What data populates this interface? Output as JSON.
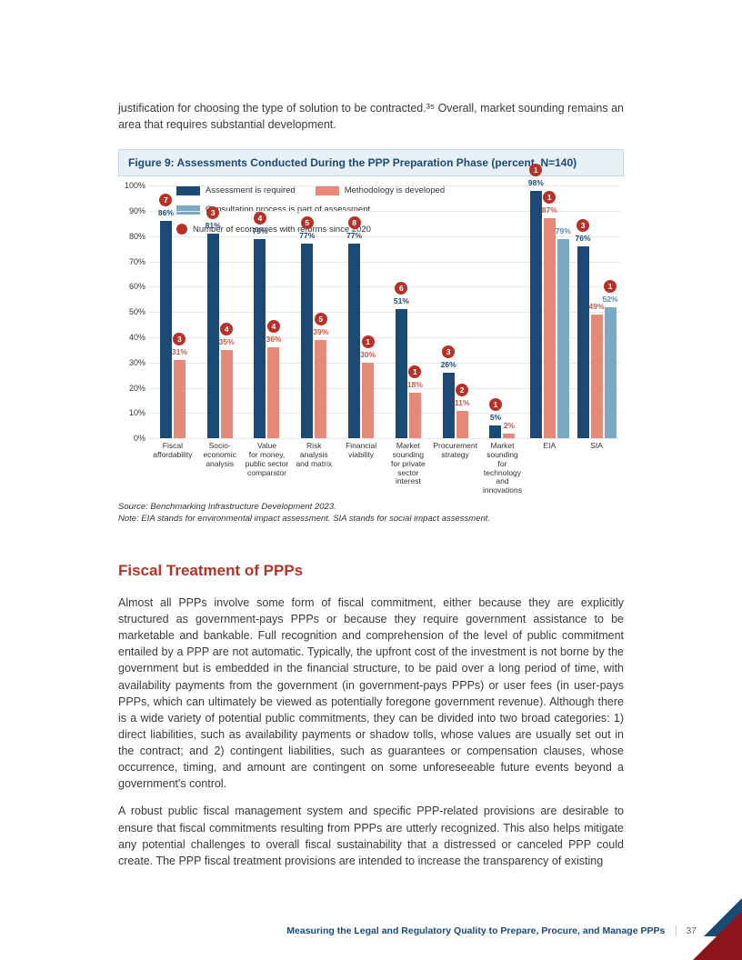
{
  "intro": "justification for choosing the type of solution to be contracted.³⁵ Overall, market sounding remains an area that requires substantial development.",
  "figure": {
    "title": "Figure 9: Assessments Conducted During the PPP Preparation Phase (percent, N=140)",
    "y_ticks": [
      "0%",
      "10%",
      "20%",
      "30%",
      "40%",
      "50%",
      "60%",
      "70%",
      "80%",
      "90%",
      "100%"
    ],
    "colors": {
      "required": "#1b4a75",
      "methodology": "#e58a7a",
      "consultation": "#7aa9c2",
      "reform_dot": "#b63228",
      "value_text_navy": "#1b4a75",
      "value_text_salmon": "#c65a4a",
      "value_text_blue": "#5a8aa8",
      "grid": "#e8e8e8"
    },
    "series_labels": {
      "required": "Assessment is required",
      "methodology": "Methodology is developed",
      "consultation": "Consultation process is part of assessment",
      "reforms": "Number of economies with reforms since 2020"
    },
    "categories": [
      {
        "label": "Fiscal\naffordability",
        "required": 86,
        "methodology": 31,
        "consultation": null,
        "reforms": [
          7,
          3
        ]
      },
      {
        "label": "Socio-\neconomic\nanalysis",
        "required": 81,
        "methodology": 35,
        "consultation": null,
        "reforms": [
          3,
          4
        ]
      },
      {
        "label": "Value\nfor money,\npublic sector\ncomparator",
        "required": 79,
        "methodology": 36,
        "consultation": null,
        "reforms": [
          4,
          4
        ]
      },
      {
        "label": "Risk\nanalysis\nand matrix",
        "required": 77,
        "methodology": 39,
        "consultation": null,
        "reforms": [
          5,
          5
        ]
      },
      {
        "label": "Financial\nviability",
        "required": 77,
        "methodology": 30,
        "consultation": null,
        "reforms": [
          8,
          1
        ]
      },
      {
        "label": "Market\nsounding\nfor private\nsector interest",
        "required": 51,
        "methodology": 18,
        "consultation": null,
        "reforms": [
          6,
          1
        ]
      },
      {
        "label": "Procurement\nstrategy",
        "required": 26,
        "methodology": 11,
        "consultation": null,
        "reforms": [
          3,
          2
        ]
      },
      {
        "label": "Market\nsounding\nfor technology\nand innovations",
        "required": 5,
        "methodology": 2,
        "consultation": null,
        "reforms": [
          1,
          null
        ]
      },
      {
        "label": "EIA",
        "required": 98,
        "methodology": 87,
        "consultation": 79,
        "reforms": [
          1,
          1,
          null
        ]
      },
      {
        "label": "SIA",
        "required": 76,
        "methodology": 49,
        "consultation": 52,
        "reforms": [
          3,
          null,
          1
        ]
      }
    ],
    "source": "Source: Benchmarking Infrastructure Development 2023.",
    "note": "Note: EIA stands for environmental impact assessment. SIA stands for social impact assessment."
  },
  "section_heading": "Fiscal Treatment of PPPs",
  "body_1": "Almost all PPPs involve some form of fiscal commitment, either because they are explicitly structured as government-pays PPPs or because they require government assistance to be marketable and bankable. Full recognition and comprehension of the level of public commitment entailed by a PPP are not automatic. Typically, the upfront cost of the investment is not borne by the government but is embedded in the financial structure, to be paid over a long period of time, with availability payments from the government (in government-pays PPPs) or user fees (in user-pays PPPs, which can ultimately be viewed as potentially foregone government revenue). Although there is a wide variety of potential public commitments, they can be divided into two broad categories: 1) direct liabilities, such as availability payments or shadow tolls, whose values are usually set out in the contract; and 2) contingent liabilities, such as guarantees or compensation clauses, whose occurrence, timing, and amount are contingent on some unforeseeable future events beyond a government's control.",
  "body_2": "A robust public fiscal management system and specific PPP-related provisions are desirable to ensure that fiscal commitments resulting from PPPs are utterly recognized. This also helps mitigate any potential challenges to overall fiscal sustainability that a distressed or canceled PPP could create. The PPP fiscal treatment provisions are intended to increase the transparency of existing",
  "footer_text": "Measuring the Legal and Regulatory Quality to Prepare, Procure, and Manage PPPs",
  "page_number": "37"
}
